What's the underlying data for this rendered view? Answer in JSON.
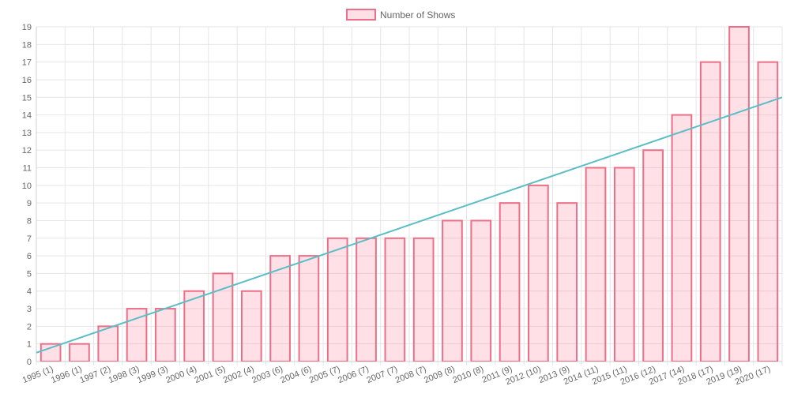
{
  "colors": {
    "bar_fill": "rgba(255, 99, 132, 0.2)",
    "bar_stroke": "#ec6f88",
    "trend_line": "#5bbec6",
    "grid": "#e6e6e6",
    "axis": "#d0d0d0",
    "text": "#666666"
  },
  "chart_data": {
    "type": "bar",
    "legend": {
      "label": "Number of Shows",
      "position": "top"
    },
    "categories": [
      "1995 (1)",
      "1996 (1)",
      "1997 (2)",
      "1998 (3)",
      "1999 (3)",
      "2000 (4)",
      "2001 (5)",
      "2002 (4)",
      "2003 (6)",
      "2004 (6)",
      "2005 (7)",
      "2006 (7)",
      "2007 (7)",
      "2008 (7)",
      "2009 (8)",
      "2010 (8)",
      "2011 (9)",
      "2012 (10)",
      "2013 (9)",
      "2014 (11)",
      "2015 (11)",
      "2016 (12)",
      "2017 (14)",
      "2018 (17)",
      "2019 (19)",
      "2020 (17)"
    ],
    "series": [
      {
        "name": "Number of Shows",
        "type": "bar",
        "values": [
          1,
          1,
          2,
          3,
          3,
          4,
          5,
          4,
          6,
          6,
          7,
          7,
          7,
          7,
          8,
          8,
          9,
          10,
          9,
          11,
          11,
          12,
          14,
          17,
          19,
          17
        ]
      }
    ],
    "trendline": {
      "type": "line",
      "start": 0.5,
      "end": 15
    },
    "yticks": [
      0,
      1,
      2,
      3,
      4,
      5,
      6,
      7,
      8,
      9,
      10,
      11,
      12,
      13,
      14,
      15,
      16,
      17,
      18,
      19
    ],
    "ylim": [
      0,
      19
    ],
    "grid": true
  }
}
